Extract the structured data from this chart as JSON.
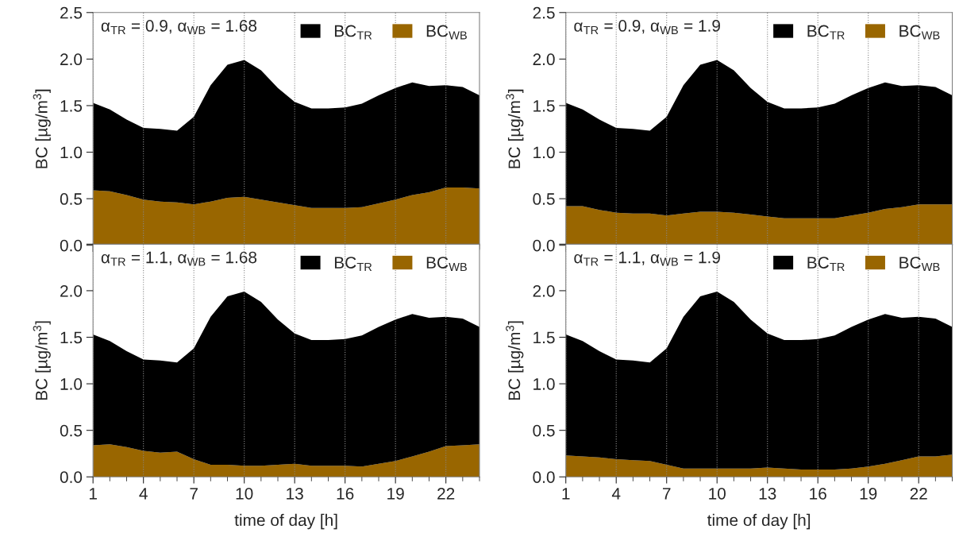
{
  "chart_data": [
    {
      "type": "area",
      "stacked": true,
      "annotations": [
        "α$_{TR}$ = 0.9, α$_{WB}$ = 1.68"
      ],
      "ylabel": "BC [µg/m$^{3}$]",
      "x": [
        1,
        2,
        3,
        4,
        5,
        6,
        7,
        8,
        9,
        10,
        11,
        12,
        13,
        14,
        15,
        16,
        17,
        18,
        19,
        20,
        21,
        22,
        23,
        24
      ],
      "xlim": [
        1,
        24
      ],
      "xticks": [
        1,
        4,
        7,
        10,
        13,
        16,
        19,
        22
      ],
      "ylim": [
        0,
        2.5
      ],
      "yticks": [
        {
          "value": 0,
          "label": "0.0"
        },
        {
          "value": 0.5,
          "label": "0.5"
        },
        {
          "value": 1,
          "label": "1.0"
        },
        {
          "value": 1.5,
          "label": "1.5"
        },
        {
          "value": 2,
          "label": "2.0"
        },
        {
          "value": 2.5,
          "label": "2.5"
        }
      ],
      "tick_labels": "y",
      "grid": "x",
      "legend": "top right",
      "series": [
        {
          "name": "BC$_{WB}$",
          "color": "#996600",
          "values": [
            0.59,
            0.58,
            0.54,
            0.49,
            0.47,
            0.46,
            0.44,
            0.47,
            0.51,
            0.52,
            0.49,
            0.46,
            0.43,
            0.4,
            0.4,
            0.4,
            0.41,
            0.45,
            0.49,
            0.54,
            0.57,
            0.62,
            0.62,
            0.61
          ]
        },
        {
          "name": "BC$_{TR}$",
          "color": "#000000",
          "values": [
            0.94,
            0.88,
            0.81,
            0.77,
            0.78,
            0.77,
            0.94,
            1.25,
            1.43,
            1.47,
            1.39,
            1.23,
            1.11,
            1.07,
            1.07,
            1.08,
            1.11,
            1.16,
            1.2,
            1.21,
            1.14,
            1.1,
            1.08,
            1.0
          ]
        }
      ]
    },
    {
      "type": "area",
      "stacked": true,
      "annotations": [
        "α$_{TR}$ = 0.9, α$_{WB}$ = 1.9"
      ],
      "ylabel": "BC [µg/m$^{3}$]",
      "x": [
        1,
        2,
        3,
        4,
        5,
        6,
        7,
        8,
        9,
        10,
        11,
        12,
        13,
        14,
        15,
        16,
        17,
        18,
        19,
        20,
        21,
        22,
        23,
        24
      ],
      "xlim": [
        1,
        24
      ],
      "xticks": [
        1,
        4,
        7,
        10,
        13,
        16,
        19,
        22
      ],
      "ylim": [
        0,
        2.5
      ],
      "yticks": [
        {
          "value": 0,
          "label": "0.0"
        },
        {
          "value": 0.5,
          "label": "0.5"
        },
        {
          "value": 1,
          "label": "1.0"
        },
        {
          "value": 1.5,
          "label": "1.5"
        },
        {
          "value": 2,
          "label": "2.0"
        },
        {
          "value": 2.5,
          "label": "2.5"
        }
      ],
      "tick_labels": "y",
      "grid": "x",
      "legend": "top right",
      "series": [
        {
          "name": "BC$_{WB}$",
          "color": "#996600",
          "values": [
            0.42,
            0.42,
            0.38,
            0.35,
            0.34,
            0.34,
            0.32,
            0.34,
            0.36,
            0.36,
            0.35,
            0.33,
            0.31,
            0.29,
            0.29,
            0.29,
            0.29,
            0.32,
            0.35,
            0.39,
            0.41,
            0.44,
            0.44,
            0.44
          ]
        },
        {
          "name": "BC$_{TR}$",
          "color": "#000000",
          "values": [
            1.11,
            1.04,
            0.97,
            0.91,
            0.91,
            0.89,
            1.06,
            1.38,
            1.58,
            1.63,
            1.53,
            1.36,
            1.23,
            1.18,
            1.18,
            1.19,
            1.23,
            1.29,
            1.34,
            1.36,
            1.3,
            1.28,
            1.26,
            1.17
          ]
        }
      ]
    },
    {
      "type": "area",
      "stacked": true,
      "annotations": [
        "α$_{TR}$ = 1.1, α$_{WB}$ = 1.68"
      ],
      "ylabel": "BC [µg/m$^{3}$]",
      "xlabel": "time of day [h]",
      "x": [
        1,
        2,
        3,
        4,
        5,
        6,
        7,
        8,
        9,
        10,
        11,
        12,
        13,
        14,
        15,
        16,
        17,
        18,
        19,
        20,
        21,
        22,
        23,
        24
      ],
      "xlim": [
        1,
        24
      ],
      "xticks": [
        1,
        4,
        7,
        10,
        13,
        16,
        19,
        22
      ],
      "ylim": [
        0,
        2.5
      ],
      "yticks": [
        {
          "value": 0,
          "label": "0.0"
        },
        {
          "value": 0.5,
          "label": "0.5"
        },
        {
          "value": 1,
          "label": "1.0"
        },
        {
          "value": 1.5,
          "label": "1.5"
        },
        {
          "value": 2,
          "label": "2.0"
        },
        {
          "value": 2.5,
          "label": null
        }
      ],
      "grid": "x",
      "legend": "top right",
      "series": [
        {
          "name": "BC$_{WB}$",
          "color": "#996600",
          "values": [
            0.34,
            0.35,
            0.32,
            0.28,
            0.26,
            0.27,
            0.19,
            0.13,
            0.13,
            0.12,
            0.12,
            0.13,
            0.14,
            0.12,
            0.12,
            0.12,
            0.11,
            0.14,
            0.17,
            0.22,
            0.27,
            0.33,
            0.34,
            0.35
          ]
        },
        {
          "name": "BC$_{TR}$",
          "color": "#000000",
          "values": [
            1.19,
            1.11,
            1.03,
            0.98,
            0.99,
            0.96,
            1.19,
            1.59,
            1.81,
            1.87,
            1.76,
            1.56,
            1.4,
            1.35,
            1.35,
            1.36,
            1.41,
            1.47,
            1.52,
            1.53,
            1.44,
            1.39,
            1.36,
            1.26
          ]
        }
      ]
    },
    {
      "type": "area",
      "stacked": true,
      "annotations": [
        "α$_{TR}$ = 1.1, α$_{WB}$ = 1.9"
      ],
      "ylabel": "BC [µg/m$^{3}$]",
      "xlabel": "time of day [h]",
      "x": [
        1,
        2,
        3,
        4,
        5,
        6,
        7,
        8,
        9,
        10,
        11,
        12,
        13,
        14,
        15,
        16,
        17,
        18,
        19,
        20,
        21,
        22,
        23,
        24
      ],
      "xlim": [
        1,
        24
      ],
      "xticks": [
        1,
        4,
        7,
        10,
        13,
        16,
        19,
        22
      ],
      "ylim": [
        0,
        2.5
      ],
      "yticks": [
        {
          "value": 0,
          "label": "0.0"
        },
        {
          "value": 0.5,
          "label": "0.5"
        },
        {
          "value": 1,
          "label": "1.0"
        },
        {
          "value": 1.5,
          "label": "1.5"
        },
        {
          "value": 2,
          "label": "2.0"
        },
        {
          "value": 2.5,
          "label": null
        }
      ],
      "grid": "x",
      "legend": "top right",
      "series": [
        {
          "name": "BC$_{WB}$",
          "color": "#996600",
          "values": [
            0.23,
            0.22,
            0.21,
            0.19,
            0.18,
            0.17,
            0.13,
            0.09,
            0.09,
            0.09,
            0.09,
            0.09,
            0.1,
            0.09,
            0.08,
            0.08,
            0.08,
            0.09,
            0.11,
            0.14,
            0.18,
            0.22,
            0.22,
            0.24
          ]
        },
        {
          "name": "BC$_{TR}$",
          "color": "#000000",
          "values": [
            1.3,
            1.24,
            1.14,
            1.07,
            1.07,
            1.06,
            1.25,
            1.63,
            1.85,
            1.9,
            1.79,
            1.6,
            1.44,
            1.38,
            1.39,
            1.4,
            1.44,
            1.52,
            1.58,
            1.61,
            1.53,
            1.5,
            1.48,
            1.37
          ]
        }
      ]
    }
  ]
}
